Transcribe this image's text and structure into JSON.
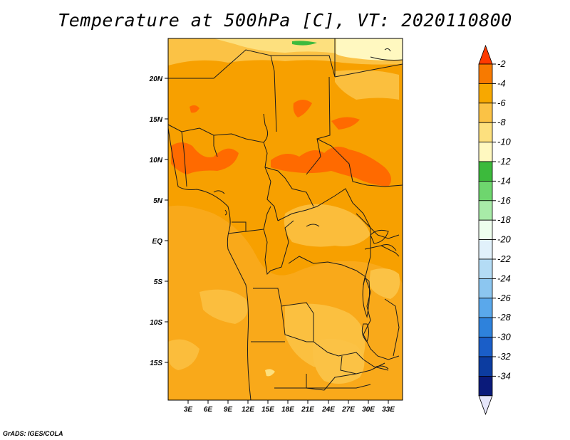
{
  "title": "Temperature at 500hPa [C], VT: 2020110800",
  "credit": "GrADS: IGES/COLA",
  "map": {
    "lat_labels": [
      "20N",
      "15N",
      "10N",
      "5N",
      "EQ",
      "5S",
      "10S",
      "15S"
    ],
    "lon_labels": [
      "3E",
      "6E",
      "9E",
      "12E",
      "15E",
      "18E",
      "21E",
      "24E",
      "27E",
      "30E",
      "33E"
    ]
  },
  "colorbar": {
    "labels": [
      "-2",
      "-4",
      "-6",
      "-8",
      "-10",
      "-12",
      "-14",
      "-16",
      "-18",
      "-20",
      "-22",
      "-24",
      "-26",
      "-28",
      "-30",
      "-32",
      "-34"
    ],
    "colors": [
      "#ff3a00",
      "#f77a00",
      "#f7a800",
      "#fbc245",
      "#fde07e",
      "#fff8c0",
      "#3cba3c",
      "#6ed66e",
      "#a8eba8",
      "#eefeee",
      "#e1f1fb",
      "#b4dcf5",
      "#8cc6f0",
      "#5aa8eb",
      "#2e82dc",
      "#1a5ec8",
      "#0c3ca0",
      "#0a1a7a",
      "#e6e6fa"
    ]
  }
}
